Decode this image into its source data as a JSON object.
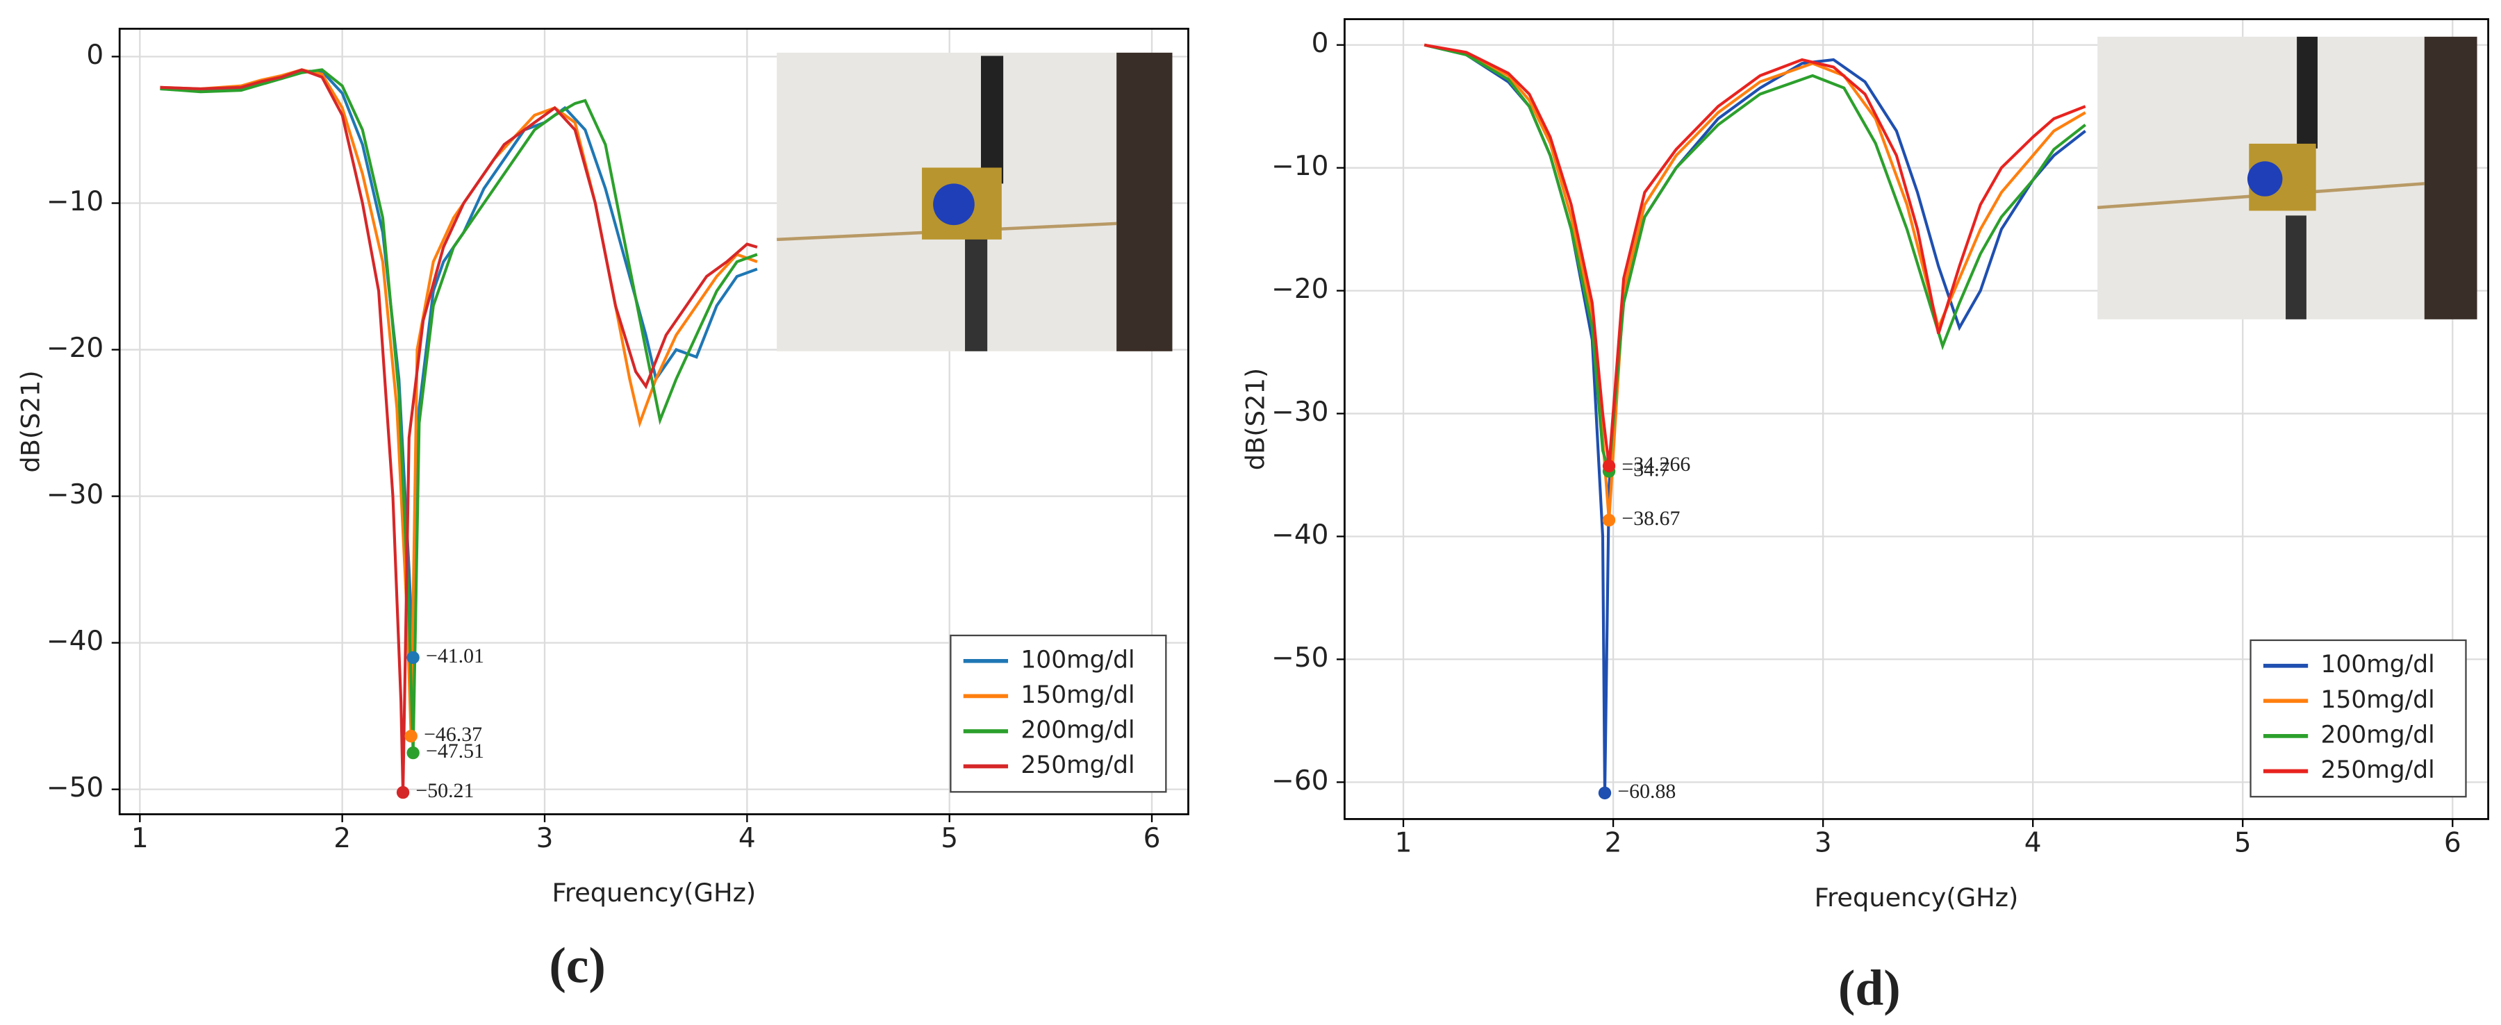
{
  "chart_data": [
    {
      "type": "line",
      "panel_label": "(c)",
      "x_label": "Frequency(GHz)",
      "y_label": "dB(S21)",
      "xlim": [
        0.9,
        6.18
      ],
      "ylim": [
        -51.7,
        1.9
      ],
      "xticks": [
        1,
        2,
        3,
        4,
        5,
        6
      ],
      "yticks": [
        0,
        {
          "value": -10,
          "label": "−10"
        },
        {
          "value": -20,
          "label": "−20"
        },
        {
          "value": -30,
          "label": "−30"
        },
        {
          "value": -40,
          "label": "−40"
        },
        {
          "value": -50,
          "label": "−50"
        }
      ],
      "grid": true,
      "legend": "lower right",
      "series": [
        {
          "name": "100mg/dl",
          "color": "#1f77b4",
          "x": [
            1.1,
            1.3,
            1.5,
            1.6,
            1.7,
            1.8,
            1.9,
            2.0,
            2.1,
            2.2,
            2.28,
            2.33,
            2.35,
            2.38,
            2.45,
            2.5,
            2.6,
            2.7,
            2.8,
            2.9,
            3.0,
            3.1,
            3.2,
            3.3,
            3.4,
            3.5,
            3.55,
            3.65,
            3.75,
            3.85,
            3.95,
            4.05
          ],
          "values": [
            -2.2,
            -2.3,
            -2.2,
            -1.8,
            -1.5,
            -1.0,
            -1.0,
            -2.5,
            -6,
            -12,
            -22,
            -35,
            -41.01,
            -24,
            -16,
            -14,
            -12,
            -9,
            -7,
            -5,
            -4.5,
            -3.5,
            -5,
            -9,
            -14,
            -19,
            -22,
            -20,
            -20.5,
            -17,
            -15,
            -14.5
          ],
          "markers": [
            {
              "x": 2.35,
              "value": -41.01,
              "value_label": "−41.01"
            }
          ]
        },
        {
          "name": "150mg/dl",
          "color": "#ff7f0e",
          "x": [
            1.1,
            1.3,
            1.5,
            1.6,
            1.7,
            1.8,
            1.9,
            2.0,
            2.1,
            2.2,
            2.27,
            2.32,
            2.34,
            2.37,
            2.45,
            2.55,
            2.65,
            2.75,
            2.85,
            2.95,
            3.05,
            3.15,
            3.25,
            3.35,
            3.42,
            3.47,
            3.55,
            3.65,
            3.75,
            3.85,
            3.95,
            4.05
          ],
          "values": [
            -2.1,
            -2.2,
            -2.0,
            -1.6,
            -1.3,
            -0.9,
            -1.2,
            -3.5,
            -8,
            -14,
            -24,
            -38,
            -46.37,
            -20,
            -14,
            -11,
            -9,
            -7,
            -5.5,
            -4,
            -3.5,
            -4.5,
            -10,
            -17,
            -22,
            -25,
            -22,
            -19,
            -17,
            -15,
            -13.5,
            -14
          ],
          "markers": [
            {
              "x": 2.34,
              "value": -46.37,
              "value_label": "−46.37"
            }
          ]
        },
        {
          "name": "200mg/dl",
          "color": "#2ca02c",
          "x": [
            1.1,
            1.3,
            1.5,
            1.6,
            1.7,
            1.8,
            1.9,
            2.0,
            2.1,
            2.2,
            2.28,
            2.33,
            2.35,
            2.38,
            2.45,
            2.55,
            2.65,
            2.75,
            2.85,
            2.95,
            3.05,
            3.15,
            3.2,
            3.3,
            3.4,
            3.5,
            3.57,
            3.65,
            3.75,
            3.85,
            3.95,
            4.05
          ],
          "values": [
            -2.2,
            -2.4,
            -2.3,
            -1.9,
            -1.5,
            -1.1,
            -0.9,
            -2.0,
            -5,
            -11,
            -23,
            -38,
            -47.51,
            -25,
            -17,
            -13,
            -11,
            -9,
            -7,
            -5,
            -4,
            -3.2,
            -3,
            -6,
            -13,
            -20,
            -24.8,
            -22,
            -19,
            -16,
            -14,
            -13.5
          ],
          "markers": [
            {
              "x": 2.35,
              "value": -47.51,
              "value_label": "−47.51"
            }
          ]
        },
        {
          "name": "250mg/dl",
          "color": "#d62728",
          "x": [
            1.1,
            1.3,
            1.5,
            1.6,
            1.7,
            1.8,
            1.9,
            2.0,
            2.1,
            2.18,
            2.25,
            2.29,
            2.3,
            2.33,
            2.4,
            2.5,
            2.6,
            2.7,
            2.8,
            2.9,
            3.0,
            3.05,
            3.15,
            3.25,
            3.35,
            3.45,
            3.5,
            3.6,
            3.7,
            3.8,
            3.9,
            4.0,
            4.05
          ],
          "values": [
            -2.1,
            -2.2,
            -2.1,
            -1.7,
            -1.4,
            -0.9,
            -1.4,
            -4,
            -10,
            -16,
            -30,
            -44,
            -50.21,
            -26,
            -18,
            -13,
            -10,
            -8,
            -6,
            -5,
            -4,
            -3.5,
            -5,
            -10,
            -17,
            -21.5,
            -22.5,
            -19,
            -17,
            -15,
            -14,
            -12.8,
            -13
          ],
          "markers": [
            {
              "x": 2.3,
              "value": -50.21,
              "value_label": "−50.21"
            }
          ]
        }
      ]
    },
    {
      "type": "line",
      "panel_label": "(d)",
      "x_label": "Frequency(GHz)",
      "y_label": "dB(S21)",
      "xlim": [
        0.72,
        6.17
      ],
      "ylim": [
        -63,
        2.1
      ],
      "xticks": [
        1,
        2,
        3,
        4,
        5,
        6
      ],
      "yticks": [
        0,
        {
          "value": -10,
          "label": "−10"
        },
        {
          "value": -20,
          "label": "−20"
        },
        {
          "value": -30,
          "label": "−30"
        },
        {
          "value": -40,
          "label": "−40"
        },
        {
          "value": -50,
          "label": "−50"
        },
        {
          "value": -60,
          "label": "−60"
        }
      ],
      "grid": true,
      "legend": "lower right",
      "series": [
        {
          "name": "100mg/dl",
          "color": "#1f4fb0",
          "x": [
            1.1,
            1.3,
            1.5,
            1.6,
            1.7,
            1.8,
            1.9,
            1.95,
            1.96,
            1.98,
            2.05,
            2.15,
            2.3,
            2.5,
            2.7,
            2.9,
            3.05,
            3.2,
            3.35,
            3.45,
            3.55,
            3.65,
            3.75,
            3.85,
            4.0,
            4.1,
            4.25
          ],
          "values": [
            0,
            -0.8,
            -3,
            -5,
            -9,
            -15,
            -24,
            -40,
            -60.88,
            -36,
            -20,
            -14,
            -10,
            -6,
            -3.5,
            -1.5,
            -1.2,
            -3,
            -7,
            -12,
            -18,
            -23,
            -20,
            -15,
            -11,
            -9,
            -7
          ],
          "markers": [
            {
              "x": 1.96,
              "value": -60.88,
              "value_label": "−60.88"
            }
          ]
        },
        {
          "name": "150mg/dl",
          "color": "#ff7f0e",
          "x": [
            1.1,
            1.3,
            1.5,
            1.6,
            1.7,
            1.8,
            1.9,
            1.95,
            1.98,
            2.05,
            2.15,
            2.3,
            2.5,
            2.7,
            2.95,
            3.1,
            3.25,
            3.4,
            3.55,
            3.65,
            3.75,
            3.85,
            4.0,
            4.1,
            4.25
          ],
          "values": [
            0,
            -0.7,
            -2.5,
            -4.5,
            -8,
            -14,
            -22,
            -32,
            -38.67,
            -20,
            -13,
            -9,
            -5.5,
            -3,
            -1.5,
            -2.5,
            -6,
            -13,
            -23,
            -19,
            -15,
            -12,
            -9,
            -7,
            -5.5
          ],
          "markers": [
            {
              "x": 1.98,
              "value": -38.67,
              "value_label": "−38.67"
            }
          ]
        },
        {
          "name": "200mg/dl",
          "color": "#2ca02c",
          "x": [
            1.1,
            1.3,
            1.5,
            1.6,
            1.7,
            1.8,
            1.9,
            1.95,
            1.98,
            2.05,
            2.15,
            2.3,
            2.5,
            2.7,
            2.95,
            3.1,
            3.25,
            3.4,
            3.57,
            3.65,
            3.75,
            3.85,
            4.0,
            4.1,
            4.25
          ],
          "values": [
            0,
            -0.8,
            -2.8,
            -5,
            -9,
            -15,
            -23,
            -33,
            -34.7,
            -21,
            -14,
            -10,
            -6.5,
            -4,
            -2.5,
            -3.5,
            -8,
            -15,
            -24.5,
            -21,
            -17,
            -14,
            -11,
            -8.5,
            -6.5
          ],
          "markers": [
            {
              "x": 1.98,
              "value": -34.7,
              "value_label": "−34.7"
            }
          ]
        },
        {
          "name": "250mg/dl",
          "color": "#e8231f",
          "x": [
            1.1,
            1.3,
            1.5,
            1.6,
            1.7,
            1.8,
            1.9,
            1.95,
            1.98,
            2.05,
            2.15,
            2.3,
            2.5,
            2.7,
            2.9,
            3.05,
            3.2,
            3.35,
            3.45,
            3.55,
            3.65,
            3.75,
            3.85,
            4.0,
            4.1,
            4.25
          ],
          "values": [
            0,
            -0.6,
            -2.3,
            -4,
            -7.5,
            -13,
            -21,
            -30,
            -34.266,
            -19,
            -12,
            -8.5,
            -5,
            -2.5,
            -1.2,
            -1.8,
            -4,
            -9,
            -15,
            -23.5,
            -18,
            -13,
            -10,
            -7.5,
            -6,
            -5
          ],
          "markers": [
            {
              "x": 1.98,
              "value": -34.266,
              "value_label": "−34.266"
            }
          ]
        }
      ]
    }
  ]
}
